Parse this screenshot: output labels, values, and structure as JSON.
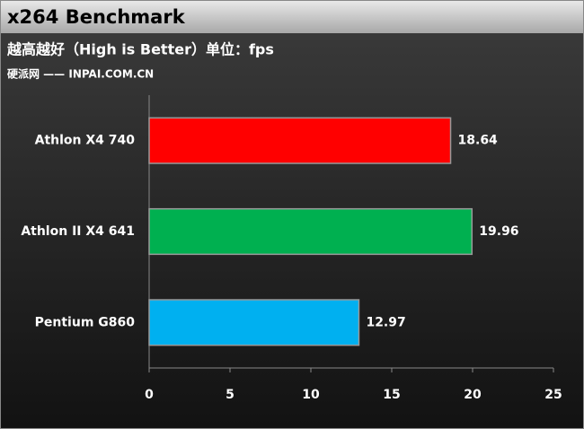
{
  "chart_data": {
    "type": "bar",
    "orientation": "horizontal",
    "title": "x264 Benchmark",
    "subtitle": "越高越好（High is Better）单位：fps",
    "source": "硬派网 —— INPAI.COM.CN",
    "categories": [
      "Athlon X4 740",
      "Athlon II X4 641",
      "Pentium G860"
    ],
    "values": [
      18.64,
      19.96,
      12.97
    ],
    "colors": [
      "#ff0000",
      "#00b050",
      "#00b0f0"
    ],
    "xlim": [
      0,
      25
    ],
    "xticks": [
      0,
      5,
      10,
      15,
      20,
      25
    ],
    "grid": false
  }
}
